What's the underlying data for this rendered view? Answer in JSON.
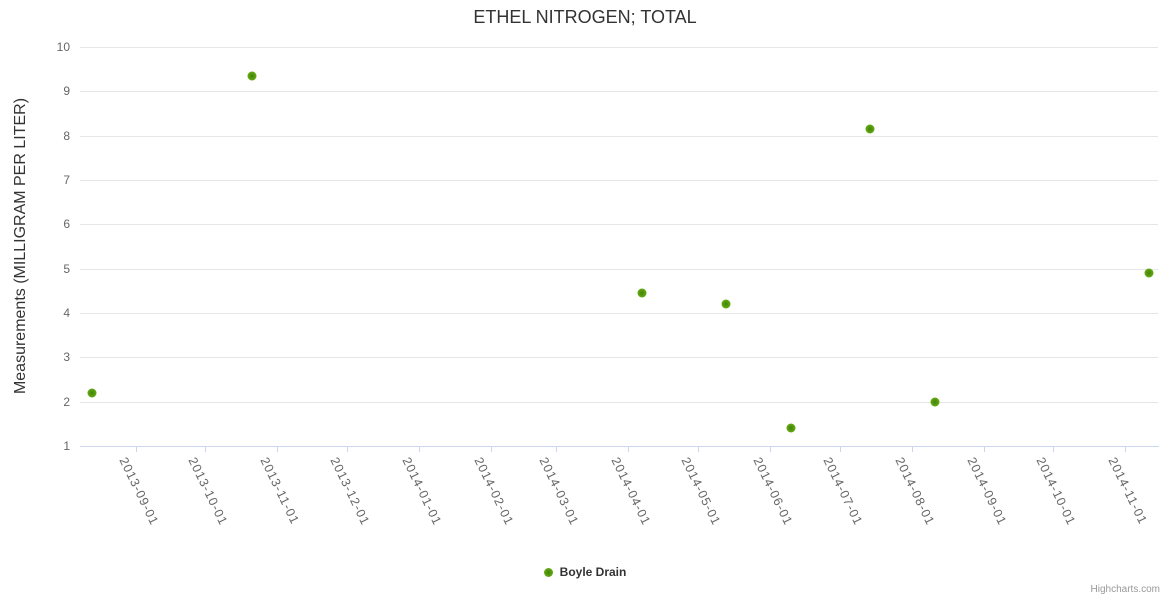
{
  "chart": {
    "credit": "Highcharts.com"
  },
  "colors": {
    "title_text": "#333333",
    "axis_label_text": "#666666",
    "axis_line": "#ccd6eb",
    "gridline": "#e6e6e6",
    "marker_green": "#5ba30f",
    "credit_text": "#999999"
  },
  "chart_data": {
    "type": "scatter",
    "title": "ETHEL NITROGEN; TOTAL",
    "xlabel": "",
    "ylabel": "Measurements (MILLIGRAM PER LITER)",
    "ylim": [
      1,
      10
    ],
    "y_ticks": [
      1,
      2,
      3,
      4,
      5,
      6,
      7,
      8,
      9,
      10
    ],
    "xlim": [
      "2013-08-08",
      "2014-11-15"
    ],
    "x_ticks": [
      "2013-09-01",
      "2013-10-01",
      "2013-11-01",
      "2013-12-01",
      "2014-01-01",
      "2014-02-01",
      "2014-03-01",
      "2014-04-01",
      "2014-05-01",
      "2014-06-01",
      "2014-07-01",
      "2014-08-01",
      "2014-09-01",
      "2014-10-01",
      "2014-11-01"
    ],
    "grid": "horizontal-only",
    "legend_position": "bottom-center",
    "series": [
      {
        "name": "Boyle Drain",
        "color": "#5ba30f",
        "marker": "circle",
        "points": [
          {
            "x": "2013-08-13",
            "y": 2.2
          },
          {
            "x": "2013-10-21",
            "y": 9.35
          },
          {
            "x": "2014-04-07",
            "y": 4.45
          },
          {
            "x": "2014-05-13",
            "y": 4.2
          },
          {
            "x": "2014-06-10",
            "y": 1.4
          },
          {
            "x": "2014-07-14",
            "y": 8.15
          },
          {
            "x": "2014-08-11",
            "y": 2.0
          },
          {
            "x": "2014-11-11",
            "y": 4.9
          }
        ]
      }
    ]
  }
}
